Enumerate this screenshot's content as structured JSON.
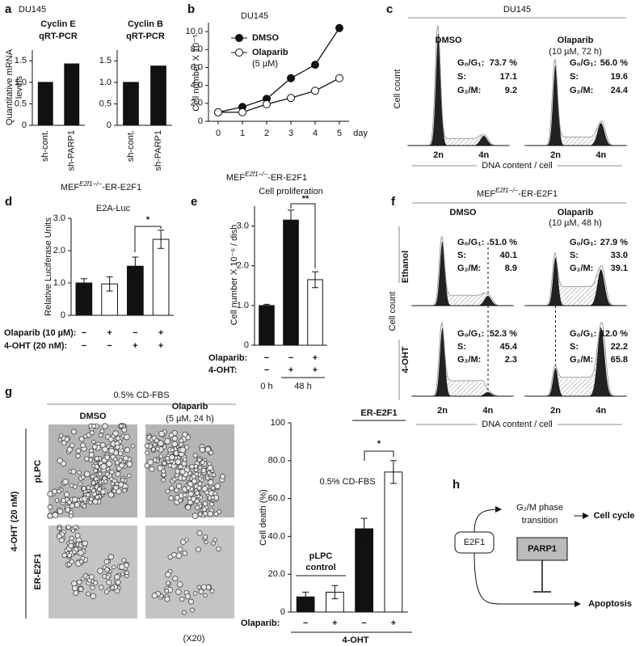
{
  "chart_data": [
    {
      "type": "bar",
      "header": "DU145",
      "title": [
        "Cyclin E",
        "qRT-PCR"
      ],
      "ylabel": [
        "Quantitative mRNA",
        "levels"
      ],
      "categories": [
        "sh-cont.",
        "sh-PARP1"
      ],
      "values": [
        1.0,
        1.43
      ],
      "color": "#111111",
      "ylim": [
        0,
        1.75
      ],
      "yticks": [
        0,
        0.5,
        {
          "value": 1,
          "label": "1.0"
        },
        1.5
      ]
    },
    {
      "type": "bar",
      "title": [
        "Cyclin B",
        "qRT-PCR"
      ],
      "categories": [
        "sh-cont.",
        "sh-PARP1"
      ],
      "values": [
        1.0,
        1.38
      ],
      "color": "#111111",
      "ylim": [
        0,
        1.75
      ],
      "yticks": [
        0,
        0.5,
        {
          "value": 1,
          "label": "1.0"
        },
        1.5
      ]
    },
    {
      "type": "line",
      "title": "DU145",
      "ylabel": "Cell number X 10⁻⁵",
      "xlabel": "day",
      "x": [
        0,
        1,
        2,
        3,
        4,
        5
      ],
      "xlim": [
        -0.4,
        5.4
      ],
      "xticks": [
        0,
        1,
        2,
        3,
        4,
        5
      ],
      "ylim": [
        0,
        11
      ],
      "yticks": [
        0,
        {
          "value": 2,
          "label": "2.0"
        },
        {
          "value": 4,
          "label": "4.0"
        },
        {
          "value": 6,
          "label": "6.0"
        },
        {
          "value": 8,
          "label": "8.0"
        },
        {
          "value": 10,
          "label": "10.0"
        }
      ],
      "series": [
        {
          "name": "DMSO",
          "color": "#111111",
          "values": [
            1.0,
            1.6,
            2.5,
            4.8,
            6.3,
            10.4
          ]
        },
        {
          "name": "Olaparib",
          "color": "#ffffff",
          "values": [
            1.0,
            1.0,
            1.9,
            2.6,
            3.4,
            4.8
          ]
        }
      ],
      "legend_note": "(5 µM)"
    },
    {
      "type": "bar",
      "header": [
        "MEF",
        "E2f1−/−",
        "-ER-E2F1"
      ],
      "title": "E2A-Luc",
      "ylabel": "Relative Luciferase Units",
      "categories": [
        null,
        null,
        null,
        null
      ],
      "values": [
        1.0,
        0.97,
        1.52,
        2.35
      ],
      "errors": [
        0.13,
        0.22,
        0.28,
        0.28
      ],
      "colors": [
        "#111111",
        "#ffffff",
        "#111111",
        "#ffffff"
      ],
      "ylim": [
        0,
        3
      ],
      "yticks": [
        0,
        {
          "value": 1,
          "label": "1.0"
        },
        {
          "value": 2,
          "label": "2.0"
        },
        {
          "value": 3,
          "label": "3.0"
        }
      ],
      "treatments": [
        {
          "name": "Olaparib (10 µM):",
          "marks": [
            "−",
            "+",
            "−",
            "+"
          ]
        },
        {
          "name": "4-OHT (20 nM):",
          "marks": [
            "−",
            "−",
            "+",
            "+"
          ]
        }
      ],
      "annotation": "*"
    },
    {
      "type": "bar",
      "header": [
        "MEF",
        "E2f1−/−",
        "-ER-E2F1"
      ],
      "title": "Cell proliferation",
      "ylabel": "Cell number X 10⁻⁶ / dish",
      "categories": [
        null,
        null,
        null
      ],
      "values": [
        1.0,
        3.15,
        1.65
      ],
      "errors": [
        0.03,
        0.25,
        0.2
      ],
      "colors": [
        "#111111",
        "#111111",
        "#ffffff"
      ],
      "ylim": [
        0,
        3.5
      ],
      "yticks": [
        0,
        {
          "value": 1,
          "label": "1.0"
        },
        {
          "value": 2,
          "label": "2.0"
        },
        {
          "value": 3,
          "label": "3.0"
        }
      ],
      "treatments": [
        {
          "name": "Olaparib:",
          "marks": [
            "−",
            "−",
            "+"
          ]
        },
        {
          "name": "4-OHT:",
          "marks": [
            "−",
            "+",
            "+"
          ]
        }
      ],
      "time_labels": [
        "0 h",
        "48 h"
      ],
      "annotation": "**"
    },
    {
      "type": "bar",
      "ylabel": "Cell death (%)",
      "note": "0.5% CD-FBS",
      "categories": [
        null,
        null,
        null,
        null
      ],
      "values": [
        8,
        10.5,
        44,
        74
      ],
      "errors": [
        2.5,
        3.5,
        5.5,
        6
      ],
      "colors": [
        "#111111",
        "#ffffff",
        "#111111",
        "#ffffff"
      ],
      "ylim": [
        0,
        100
      ],
      "yticks": [
        0,
        {
          "value": 20,
          "label": "20.0"
        },
        {
          "value": 40,
          "label": "40.0"
        },
        {
          "value": 60,
          "label": "60.0"
        },
        {
          "value": 80,
          "label": "80.0"
        },
        100
      ],
      "group_labels": [
        [
          "pLPC",
          "control"
        ],
        [
          "ER-E2F1"
        ]
      ],
      "treatments": [
        {
          "name": "Olaparib:",
          "marks": [
            "−",
            "+",
            "−",
            "+"
          ]
        }
      ],
      "group_treatment": "4-OHT",
      "annotation": "*"
    }
  ],
  "panel_labels": [
    "a",
    "b",
    "c",
    "d",
    "e",
    "f",
    "g",
    "h"
  ],
  "c": {
    "header": "DU145",
    "conditions": [
      "DMSO",
      "Olaparib"
    ],
    "condition_note": "(10 µM, 72 h)",
    "stats": [
      [
        [
          "G₀/G₁:",
          "73.7 %"
        ],
        [
          "S:",
          "17.1"
        ],
        [
          "G₂/M:",
          "9.2"
        ]
      ],
      [
        [
          "G₀/G₁:",
          "56.0 %"
        ],
        [
          "S:",
          "19.6"
        ],
        [
          "G₂/M:",
          "24.4"
        ]
      ]
    ],
    "ylabel": "Cell count",
    "xticks": [
      "2n",
      "4n"
    ],
    "xlabel": "DNA content / cell"
  },
  "f": {
    "header": [
      "MEF",
      "E2f1−/−",
      "-ER-E2F1"
    ],
    "conditions": [
      "DMSO",
      "Olaparib"
    ],
    "condition_note": "(10 µM, 48 h)",
    "rows": [
      "Ethanol",
      "4-OHT"
    ],
    "stats": [
      [
        [
          [
            "G₀/G₁:",
            "51.0 %"
          ],
          [
            "S:",
            "40.1"
          ],
          [
            "G₂/M:",
            "8.9"
          ]
        ],
        [
          [
            "G₀/G₁:",
            "27.9 %"
          ],
          [
            "S:",
            "33.0"
          ],
          [
            "G₂/M:",
            "39.1"
          ]
        ]
      ],
      [
        [
          [
            "G₀/G₁:",
            "52.3 %"
          ],
          [
            "S:",
            "45.4"
          ],
          [
            "G₂/M:",
            "2.3"
          ]
        ],
        [
          [
            "G₀/G₁:",
            "12.0 %"
          ],
          [
            "S:",
            "22.2"
          ],
          [
            "G₂/M:",
            "65.8"
          ]
        ]
      ]
    ],
    "ylabel": "Cell count",
    "xticks": [
      "2n",
      "4n"
    ],
    "xlabel": "DNA content / cell"
  },
  "g": {
    "header": "0.5% CD-FBS",
    "columns": [
      "DMSO",
      "Olaparib"
    ],
    "column_note": "(5 µM, 24 h)",
    "rows": [
      "pLPC",
      "ER-E2F1"
    ],
    "treatment": "4-OHT (20 nM)",
    "magnification": "(X20)"
  },
  "h": {
    "nodes": [
      "E2F1",
      "PARP1"
    ],
    "labels": [
      "G₂/M phase",
      "transition",
      "Cell cycle",
      "Apoptosis"
    ]
  }
}
